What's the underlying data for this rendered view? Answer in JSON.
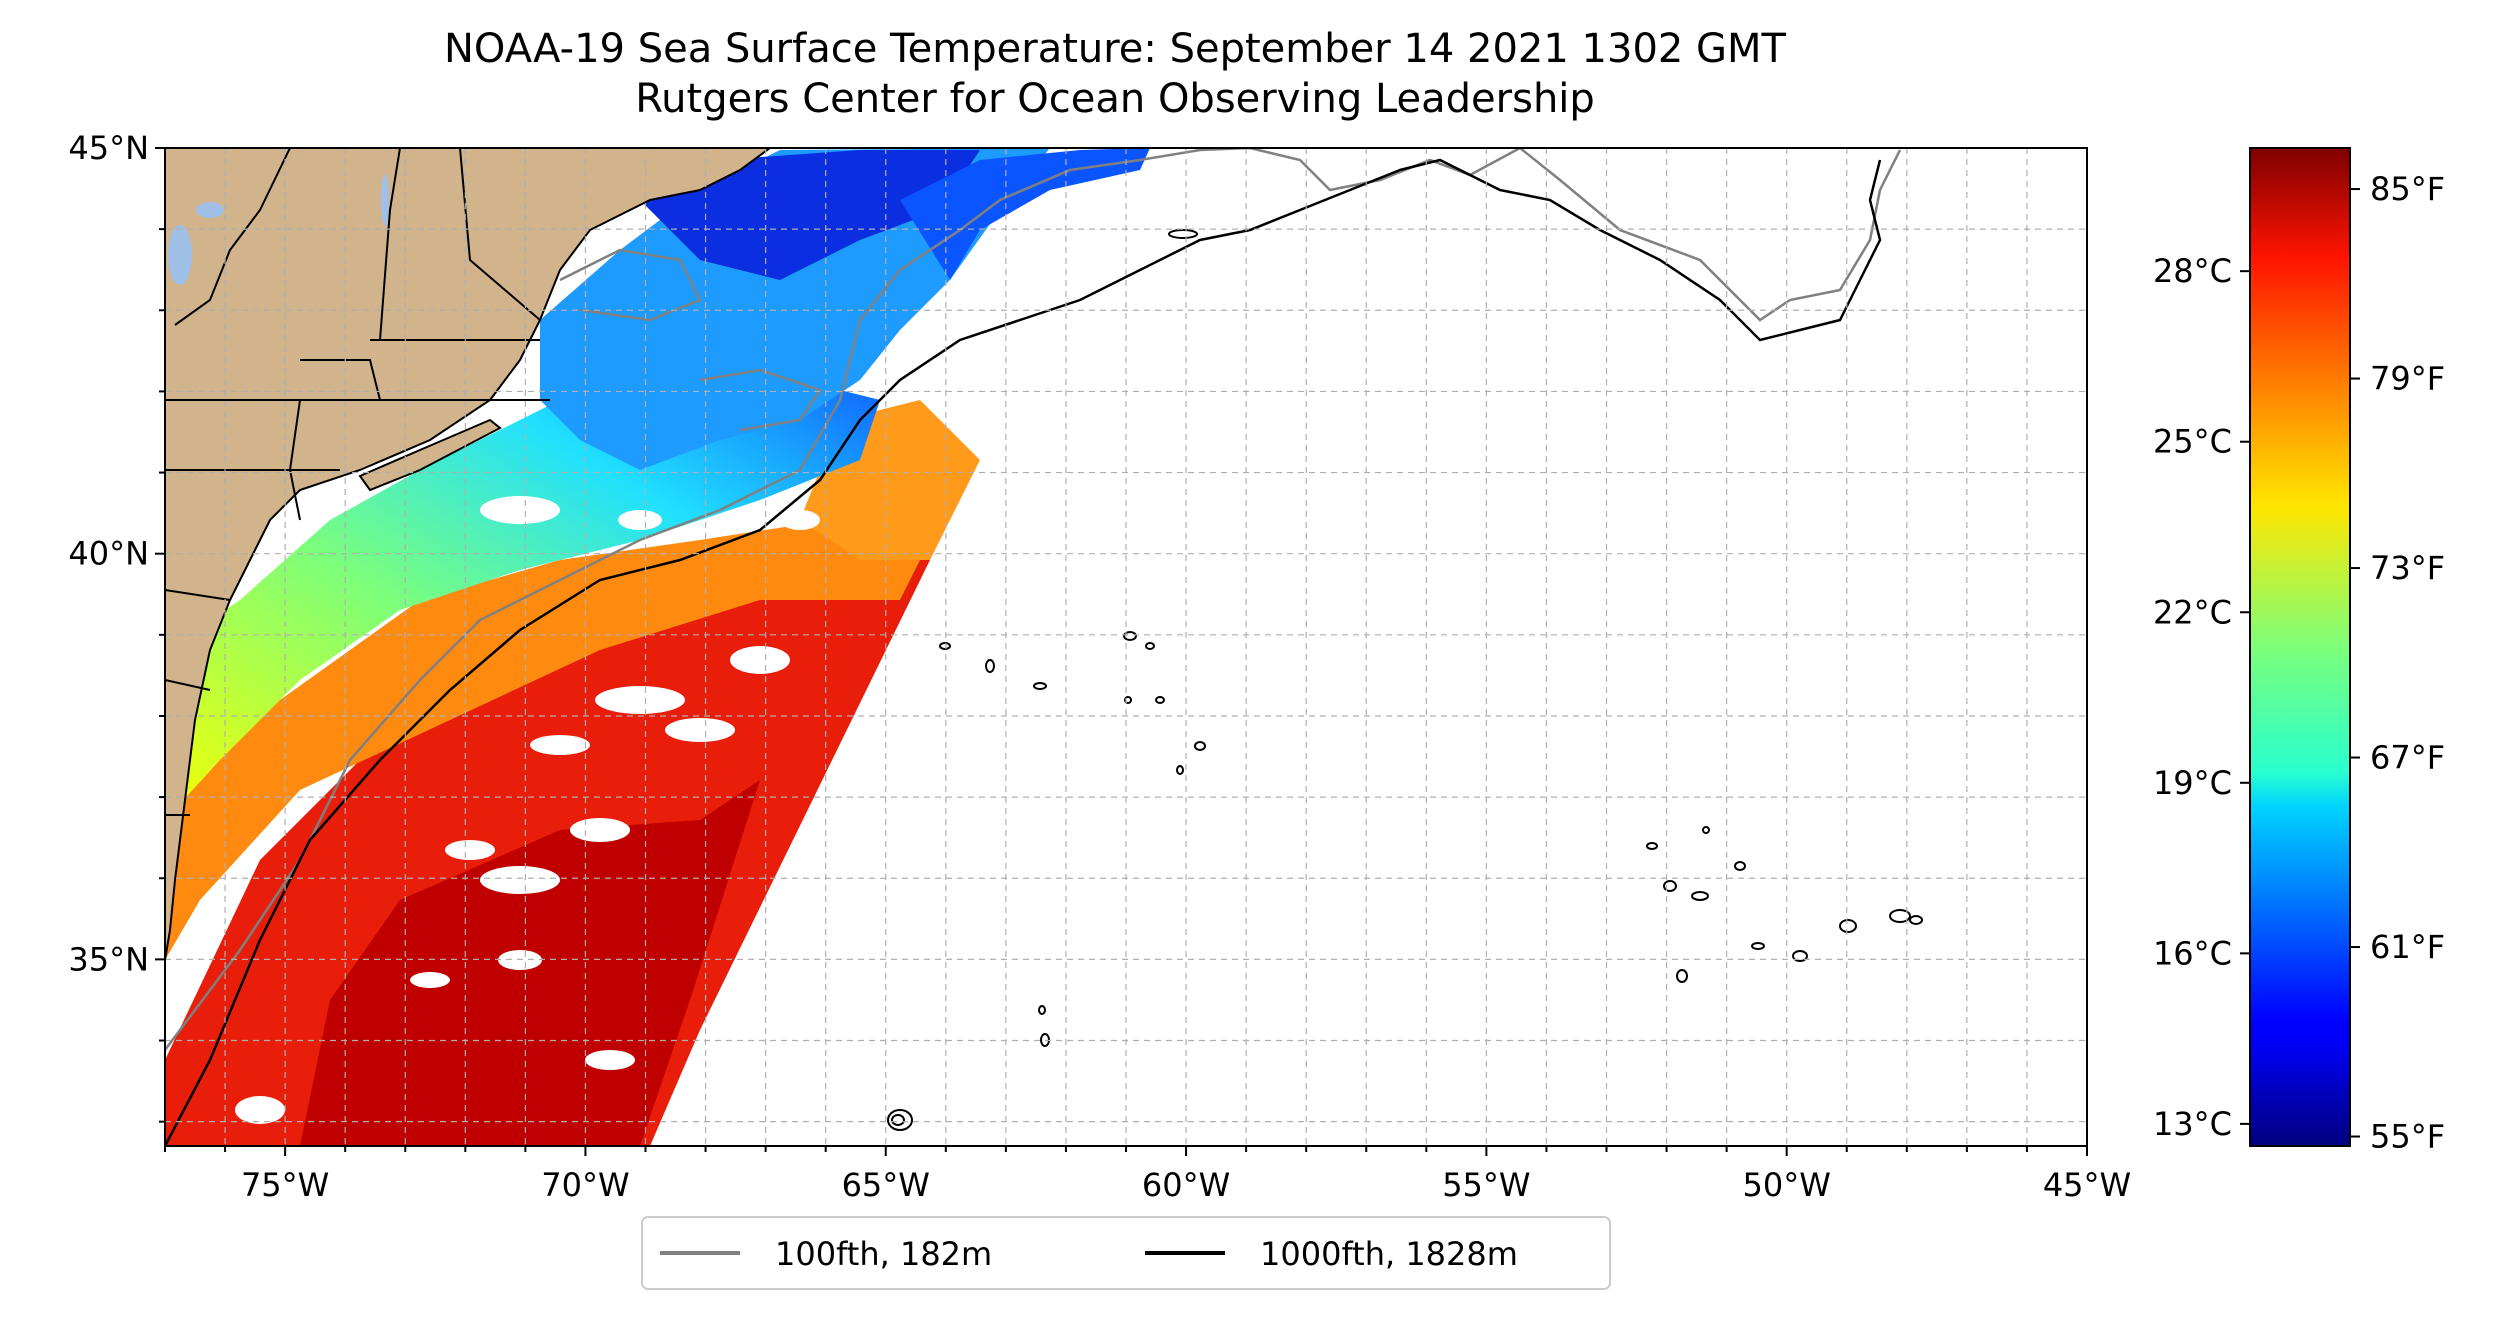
{
  "title": {
    "line1": "NOAA-19 Sea Surface Temperature: September 14 2021 1302 GMT",
    "line2": "Rutgers Center for Ocean Observing Leadership"
  },
  "map": {
    "lon_range": [
      -77,
      -45
    ],
    "lat_range": [
      32.7,
      45
    ],
    "lon_ticks": [
      {
        "value": -75,
        "label": "75°W"
      },
      {
        "value": -70,
        "label": "70°W"
      },
      {
        "value": -65,
        "label": "65°W"
      },
      {
        "value": -60,
        "label": "60°W"
      },
      {
        "value": -55,
        "label": "55°W"
      },
      {
        "value": -50,
        "label": "50°W"
      },
      {
        "value": -45,
        "label": "45°W"
      }
    ],
    "lat_ticks": [
      {
        "value": 45,
        "label": "45°N"
      },
      {
        "value": 40,
        "label": "40°N"
      },
      {
        "value": 35,
        "label": "35°N"
      }
    ],
    "grid": true,
    "colors": {
      "land": "#d2b48c",
      "contour_100fth": "#808080",
      "contour_1000fth": "#000000"
    }
  },
  "legend": {
    "items": [
      {
        "label": "100fth, 182m",
        "color": "#808080"
      },
      {
        "label": "1000fth, 1828m",
        "color": "#000000"
      }
    ]
  },
  "colorbar": {
    "colormap": "jet",
    "fahrenheit_range": [
      54.7,
      86.3
    ],
    "fahrenheit_ticks": [
      {
        "value": 85,
        "label": "85°F"
      },
      {
        "value": 79,
        "label": "79°F"
      },
      {
        "value": 73,
        "label": "73°F"
      },
      {
        "value": 67,
        "label": "67°F"
      },
      {
        "value": 61,
        "label": "61°F"
      },
      {
        "value": 55,
        "label": "55°F"
      }
    ],
    "celsius_ticks": [
      {
        "value": 28,
        "label": "28°C"
      },
      {
        "value": 25,
        "label": "25°C"
      },
      {
        "value": 22,
        "label": "22°C"
      },
      {
        "value": 19,
        "label": "19°C"
      },
      {
        "value": 16,
        "label": "16°C"
      },
      {
        "value": 13,
        "label": "13°C"
      }
    ]
  }
}
